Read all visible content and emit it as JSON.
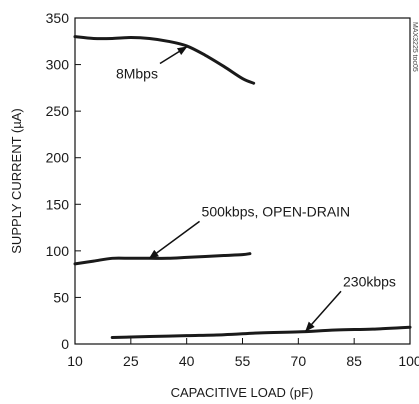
{
  "chart_data": {
    "type": "line",
    "title": "",
    "xlabel": "CAPACITIVE LOAD (pF)",
    "ylabel": "SUPPLY CURRENT (µA)",
    "xlim": [
      10,
      100
    ],
    "ylim": [
      0,
      350
    ],
    "xticks": [
      10,
      25,
      40,
      55,
      70,
      85,
      100
    ],
    "yticks": [
      0,
      50,
      100,
      150,
      200,
      250,
      300,
      350
    ],
    "x_tick_labels": [
      "10",
      "25",
      "40",
      "55",
      "70",
      "85",
      "100"
    ],
    "y_tick_labels": [
      "0",
      "50",
      "100",
      "150",
      "200",
      "250",
      "300",
      "350"
    ],
    "grid": false,
    "series": [
      {
        "name": "8Mbps",
        "x": [
          10,
          15,
          20,
          25,
          30,
          35,
          40,
          45,
          50,
          55,
          58
        ],
        "y": [
          330,
          328,
          328,
          329,
          328,
          325,
          320,
          310,
          298,
          285,
          280
        ]
      },
      {
        "name": "500kbps, OPEN-DRAIN",
        "x": [
          10,
          15,
          20,
          25,
          30,
          35,
          40,
          45,
          50,
          55,
          57
        ],
        "y": [
          86,
          89,
          92,
          92,
          92,
          92,
          93,
          94,
          95,
          96,
          97
        ]
      },
      {
        "name": "230kbps",
        "x": [
          20,
          30,
          40,
          50,
          60,
          70,
          80,
          90,
          100
        ],
        "y": [
          7,
          8,
          9,
          10,
          12,
          13,
          15,
          16,
          18
        ]
      }
    ],
    "annotations": [
      {
        "text": "8Mbps",
        "series": "8Mbps",
        "text_x": 21,
        "text_y": 285,
        "point_x": 40,
        "point_y": 319
      },
      {
        "text": "500kbps, OPEN-DRAIN",
        "series": "500kbps, OPEN-DRAIN",
        "text_x": 44,
        "text_y": 137,
        "point_x": 30,
        "point_y": 92
      },
      {
        "text": "230kbps",
        "series": "230kbps",
        "text_x": 82,
        "text_y": 62,
        "point_x": 72,
        "point_y": 14
      }
    ],
    "side_code": "MAX3225 toc05"
  }
}
